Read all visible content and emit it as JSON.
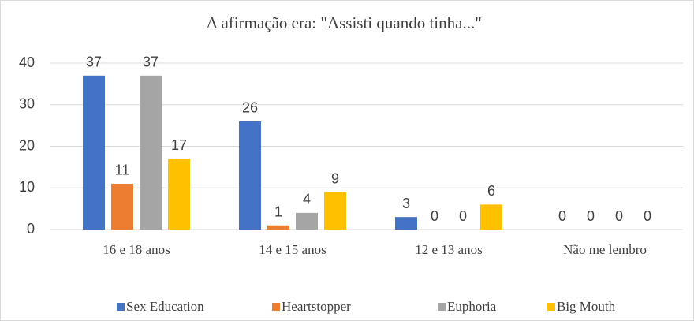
{
  "chart_data": {
    "type": "bar",
    "title": "A afirmação era: \"Assisti quando tinha...\"",
    "categories": [
      "16 e 18 anos",
      "14 e 15 anos",
      "12 e 13 anos",
      "Não me lembro"
    ],
    "series": [
      {
        "name": "Sex Education",
        "color": "#4472c4",
        "values": [
          37,
          26,
          3,
          0
        ]
      },
      {
        "name": "Heartstopper",
        "color": "#ed7d31",
        "values": [
          11,
          1,
          0,
          0
        ]
      },
      {
        "name": "Euphoria",
        "color": "#a5a5a5",
        "values": [
          37,
          4,
          0,
          0
        ]
      },
      {
        "name": "Big Mouth",
        "color": "#ffc000",
        "values": [
          17,
          9,
          6,
          0
        ]
      }
    ],
    "ylim": [
      0,
      40
    ],
    "yticks": [
      0,
      10,
      20,
      30,
      40
    ],
    "grid": true,
    "legend": "bottom"
  }
}
